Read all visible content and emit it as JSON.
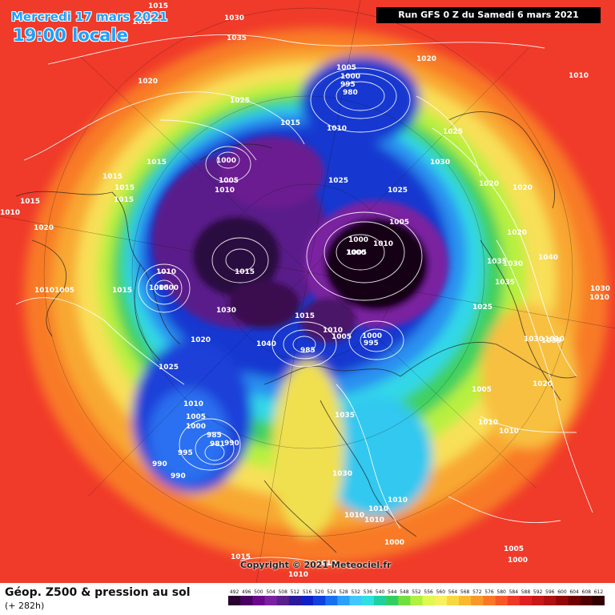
{
  "header": {
    "valid_date": "Mercredi 17 mars 2021",
    "valid_time": "19:00 locale",
    "run_info": "Run GFS 0 Z du Samedi 6 mars 2021"
  },
  "footer": {
    "field_title": "Géop. Z500 & pression au sol",
    "lead_time": "(+ 282h)",
    "copyright": "Copyright © 2021 Meteociel.fr"
  },
  "legend": {
    "values": [
      "492",
      "496",
      "500",
      "504",
      "508",
      "512",
      "516",
      "520",
      "524",
      "528",
      "532",
      "536",
      "540",
      "544",
      "548",
      "552",
      "556",
      "560",
      "564",
      "568",
      "572",
      "576",
      "580",
      "584",
      "588",
      "592",
      "596",
      "600",
      "604",
      "608",
      "612"
    ],
    "colors": [
      "#2a0030",
      "#4a0060",
      "#6a0a8a",
      "#7a20a0",
      "#58208a",
      "#2a1a9a",
      "#1020c8",
      "#1040e0",
      "#1870f0",
      "#2aa0f8",
      "#40c8ff",
      "#30e0e0",
      "#20d0a0",
      "#30d060",
      "#70e040",
      "#b0f040",
      "#e0f850",
      "#f8f060",
      "#f8d840",
      "#f8b830",
      "#f89828",
      "#f87828",
      "#f85828",
      "#f03828",
      "#e02020",
      "#c81818",
      "#b01010",
      "#900808",
      "#700000",
      "#500000",
      "#300000"
    ]
  },
  "pressure_labels": [
    "1015",
    "1015",
    "1030",
    "1035",
    "1020",
    "1020",
    "1010",
    "1025",
    "1005",
    "1000",
    "995",
    "980",
    "1015",
    "1010",
    "1025",
    "1030",
    "1015",
    "1015",
    "1015",
    "1000",
    "1005",
    "1010",
    "1025",
    "1025",
    "1020",
    "1020",
    "1015",
    "1010",
    "1015",
    "1020",
    "1005",
    "1000",
    "1010",
    "1005",
    "1000",
    "1020",
    "1035",
    "1030",
    "1040",
    "1035",
    "1010",
    "1005",
    "1000",
    "1010",
    "1005",
    "1015",
    "1015",
    "1030",
    "1025",
    "1030",
    "1010",
    "1035",
    "1015",
    "1040",
    "985",
    "1010",
    "1005",
    "995",
    "1000",
    "1030",
    "1010",
    "1020",
    "1025",
    "1020",
    "1005",
    "1010",
    "1005",
    "1000",
    "985",
    "981",
    "990",
    "995",
    "990",
    "990",
    "1035",
    "1010",
    "1010",
    "1030",
    "1010",
    "1010",
    "1010",
    "1010",
    "1010",
    "1005",
    "1000",
    "1015",
    "1010",
    "1000"
  ]
}
